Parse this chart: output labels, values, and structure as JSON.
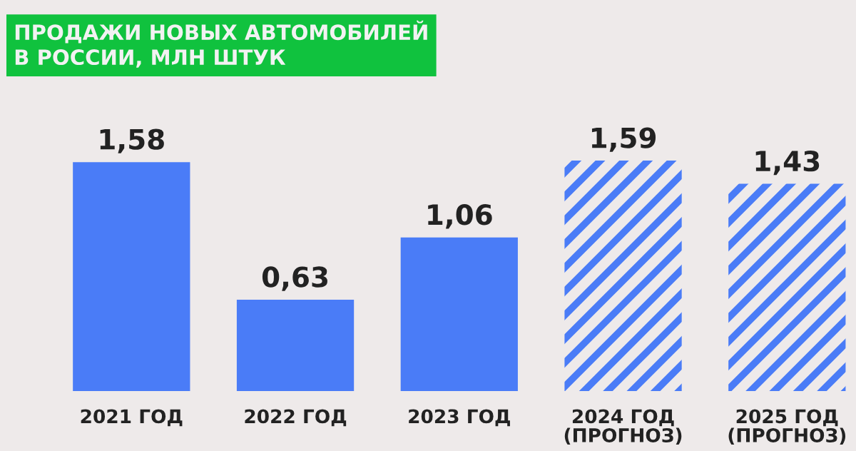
{
  "chart_data": {
    "type": "bar",
    "title": "ПРОДАЖИ НОВЫХ АВТОМОБИЛЕЙ\nВ РОССИИ, МЛН ШТУК",
    "categories": [
      "2021 ГОД",
      "2022 ГОД",
      "2023 ГОД",
      "2024 ГОД\n(ПРОГНОЗ)",
      "2025 ГОД\n(ПРОГНОЗ)"
    ],
    "stacked": true,
    "tick_labels": "x",
    "grid": false,
    "legend": false,
    "series": [
      {
        "color": "#4a7cf7",
        "values": [
          1.58,
          0.63,
          1.06,
          null,
          null
        ],
        "value_labels": [
          "1,58",
          "0,63",
          "1,06",
          null,
          null
        ]
      },
      {
        "color": "#4a7cf7",
        "values": [
          null,
          null,
          null,
          1.59,
          1.43
        ],
        "value_labels": [
          null,
          null,
          null,
          "1,59",
          "1,43"
        ]
      }
    ]
  }
}
